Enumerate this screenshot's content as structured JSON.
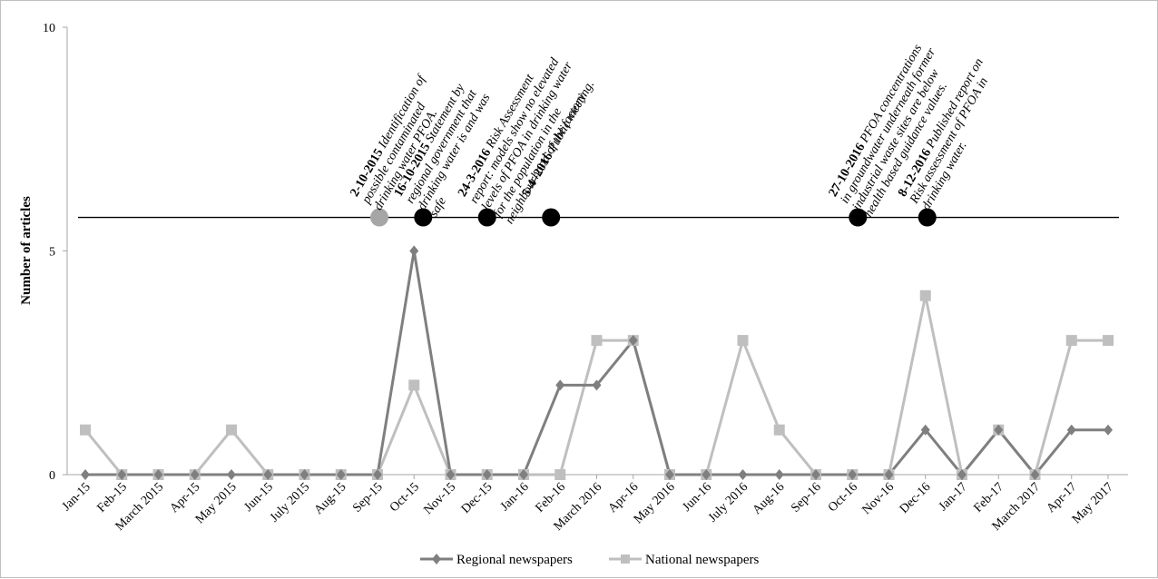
{
  "chart_data": {
    "type": "line",
    "title": "",
    "xlabel": "",
    "ylabel": "Number of articles",
    "ylim": [
      0,
      10
    ],
    "yticks": [
      "0",
      "5",
      "10"
    ],
    "grid": false,
    "legend_position": "bottom",
    "categories": [
      "Jan-15",
      "Feb-15",
      "March 2015",
      "Apr-15",
      "May 2015",
      "Jun-15",
      "July 2015",
      "Aug-15",
      "Sep-15",
      "Oct-15",
      "Nov-15",
      "Dec-15",
      "Jan-16",
      "Feb-16",
      "March 2016",
      "Apr-16",
      "May 2016",
      "Jun-16",
      "July 2016",
      "Aug-16",
      "Sep-16",
      "Oct-16",
      "Nov-16",
      "Dec-16",
      "Jan-17",
      "Feb-17",
      "March 2017",
      "Apr-17",
      "May 2017"
    ],
    "series": [
      {
        "name": "Regional newspapers",
        "color": "#7f7f7f",
        "marker": "diamond",
        "values": [
          0,
          0,
          0,
          0,
          0,
          0,
          0,
          0,
          0,
          5,
          0,
          0,
          0,
          2,
          2,
          3,
          0,
          0,
          0,
          0,
          0,
          0,
          0,
          1,
          0,
          1,
          0,
          1,
          1
        ]
      },
      {
        "name": "National newspapers",
        "color": "#bfbfbf",
        "marker": "square",
        "values": [
          1,
          0,
          0,
          0,
          1,
          0,
          0,
          0,
          0,
          2,
          0,
          0,
          0,
          0,
          3,
          3,
          0,
          0,
          3,
          1,
          0,
          0,
          0,
          4,
          0,
          1,
          0,
          3,
          3
        ]
      }
    ],
    "timeline": {
      "level": 5.75,
      "events": [
        {
          "date": "2-10-2015",
          "x": 8.05,
          "color": "#a6a6a6",
          "lines": [
            "Identification of",
            "possible contaminated",
            "drinking  water PFOA."
          ]
        },
        {
          "date": "16-10-2015",
          "x": 9.25,
          "color": "#000000",
          "lines": [
            "Statement by",
            "regional government that",
            "drinking  water is and was",
            "safe"
          ]
        },
        {
          "date": "24-3-2016",
          "x": 11.0,
          "color": "#000000",
          "lines": [
            "Risk Assessment",
            "report: models show no elevated",
            "levels  of PFOA in drinking  water",
            "for the population in the",
            "neighbourhood of the factory."
          ]
        },
        {
          "date": "5-4–2016",
          "x": 12.75,
          "color": "#000000",
          "lines": [
            "Public meeting."
          ]
        },
        {
          "date": "27-10-2016",
          "x": 21.15,
          "color": "#000000",
          "lines": [
            "PFOA concentrations",
            "in groundwater underneath former",
            "industrial waste sites are below",
            "health based guidance values."
          ]
        },
        {
          "date": "8-12-2016",
          "x": 23.05,
          "color": "#000000",
          "lines": [
            "Published report on",
            "Risk assessment of PFOA in",
            "drinking  water."
          ]
        }
      ]
    }
  }
}
